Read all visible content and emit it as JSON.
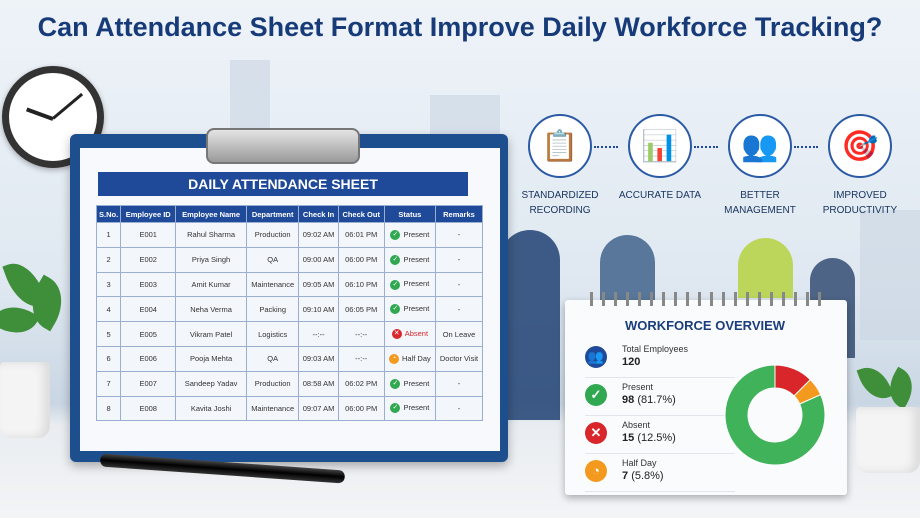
{
  "title": "Can Attendance Sheet Format Improve Daily Workforce Tracking?",
  "sheet": {
    "title": "DAILY ATTENDANCE SHEET",
    "columns": [
      "S.No.",
      "Employee ID",
      "Employee Name",
      "Department",
      "Check In",
      "Check Out",
      "Status",
      "Remarks"
    ],
    "rows": [
      [
        "1",
        "E001",
        "Rahul Sharma",
        "Production",
        "09:02 AM",
        "06:01 PM",
        "Present",
        "-"
      ],
      [
        "2",
        "E002",
        "Priya Singh",
        "QA",
        "09:00 AM",
        "06:00 PM",
        "Present",
        "-"
      ],
      [
        "3",
        "E003",
        "Amit Kumar",
        "Maintenance",
        "09:05 AM",
        "06:10 PM",
        "Present",
        "-"
      ],
      [
        "4",
        "E004",
        "Neha Verma",
        "Packing",
        "09:10 AM",
        "06:05 PM",
        "Present",
        "-"
      ],
      [
        "5",
        "E005",
        "Vikram Patel",
        "Logistics",
        "--:--",
        "--:--",
        "Absent",
        "On Leave"
      ],
      [
        "6",
        "E006",
        "Pooja Mehta",
        "QA",
        "09:03 AM",
        "--:--",
        "Half Day",
        "Doctor Visit"
      ],
      [
        "7",
        "E007",
        "Sandeep Yadav",
        "Production",
        "08:58 AM",
        "06:02 PM",
        "Present",
        "-"
      ],
      [
        "8",
        "E008",
        "Kavita Joshi",
        "Maintenance",
        "09:07 AM",
        "06:00 PM",
        "Present",
        "-"
      ]
    ]
  },
  "status_colors": {
    "Present": "#2fa84f",
    "Absent": "#d9262b",
    "Half Day": "#f39a1e"
  },
  "steps": [
    {
      "icon": "clipboard-checklist-icon",
      "glyph": "📋",
      "label": "STANDARDIZED RECORDING"
    },
    {
      "icon": "bar-chart-icon",
      "glyph": "📊",
      "label": "ACCURATE DATA"
    },
    {
      "icon": "team-icon",
      "glyph": "👥",
      "label": "BETTER MANAGEMENT"
    },
    {
      "icon": "target-icon",
      "glyph": "🎯",
      "label": "IMPROVED PRODUCTIVITY"
    }
  ],
  "overview": {
    "title": "WORKFORCE OVERVIEW",
    "stats": [
      {
        "label": "Total Employees",
        "count": "120",
        "pct": "",
        "icon": "users-icon",
        "color": "#1f4a9a",
        "glyph": "👥"
      },
      {
        "label": "Present",
        "count": "98",
        "pct": "(81.7%)",
        "icon": "check-icon",
        "color": "#2fa84f",
        "glyph": "✓"
      },
      {
        "label": "Absent",
        "count": "15",
        "pct": "(12.5%)",
        "icon": "x-icon",
        "color": "#d9262b",
        "glyph": "✕"
      },
      {
        "label": "Half Day",
        "count": "7",
        "pct": "(5.8%)",
        "icon": "clock-icon",
        "color": "#f39a1e",
        "glyph": "◔"
      }
    ],
    "donut": [
      {
        "name": "Absent",
        "value": 15,
        "color": "#d9262b"
      },
      {
        "name": "Half Day",
        "value": 7,
        "color": "#f39a1e"
      },
      {
        "name": "Present",
        "value": 98,
        "color": "#3fb25a"
      }
    ]
  }
}
